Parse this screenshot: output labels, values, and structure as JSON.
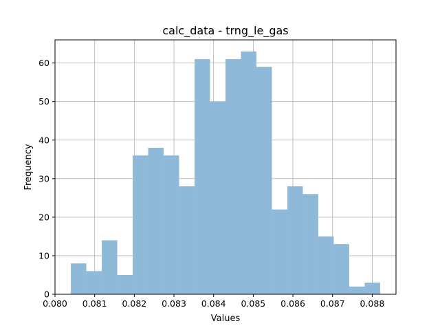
{
  "chart_data": {
    "type": "bar",
    "title": "calc_data - trng_le_gas",
    "xlabel": "Values",
    "ylabel": "Frequency",
    "xlim": [
      0.08,
      0.0886
    ],
    "ylim": [
      0,
      66
    ],
    "grid": true,
    "bar_color": "#8fb9d8",
    "bin_edges": [
      0.0804,
      0.08079,
      0.08118,
      0.08157,
      0.08196,
      0.08235,
      0.08274,
      0.08313,
      0.08352,
      0.08391,
      0.0843,
      0.08469,
      0.08508,
      0.08547,
      0.08586,
      0.08625,
      0.08664,
      0.08703,
      0.08742,
      0.08781,
      0.0882
    ],
    "values": [
      8,
      6,
      14,
      5,
      36,
      38,
      36,
      28,
      61,
      50,
      61,
      63,
      59,
      22,
      28,
      26,
      15,
      13,
      2,
      3
    ],
    "xticks": [
      {
        "value": 0.08,
        "label": "0.080"
      },
      {
        "value": 0.081,
        "label": "0.081"
      },
      {
        "value": 0.082,
        "label": "0.082"
      },
      {
        "value": 0.083,
        "label": "0.083"
      },
      {
        "value": 0.084,
        "label": "0.084"
      },
      {
        "value": 0.085,
        "label": "0.085"
      },
      {
        "value": 0.086,
        "label": "0.086"
      },
      {
        "value": 0.087,
        "label": "0.087"
      },
      {
        "value": 0.088,
        "label": "0.088"
      }
    ],
    "yticks": [
      {
        "value": 0,
        "label": "0"
      },
      {
        "value": 10,
        "label": "10"
      },
      {
        "value": 20,
        "label": "20"
      },
      {
        "value": 30,
        "label": "30"
      },
      {
        "value": 40,
        "label": "40"
      },
      {
        "value": 50,
        "label": "50"
      },
      {
        "value": 60,
        "label": "60"
      }
    ]
  }
}
